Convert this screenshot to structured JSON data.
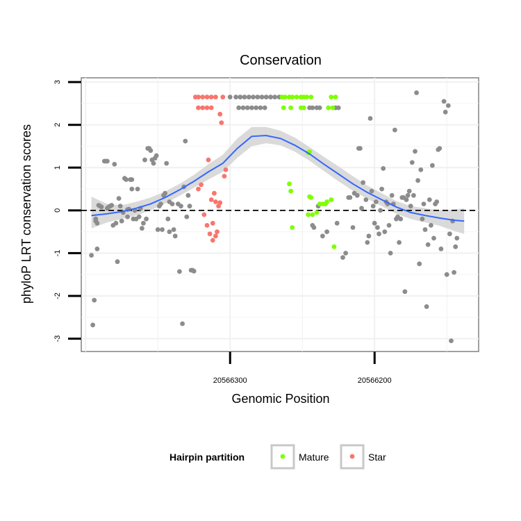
{
  "chart_data": {
    "type": "scatter",
    "title": "Conservation",
    "xlabel": "Genomic Position",
    "ylabel": "phyloP LRT conservation scores",
    "x_reversed": true,
    "xlim": [
      20566403,
      20566128
    ],
    "ylim": [
      -3.3,
      3.1
    ],
    "x_ticks": [
      20566300,
      20566200
    ],
    "x_tick_labels": [
      "20566300",
      "20566200"
    ],
    "y_ticks": [
      -3,
      -2,
      -1,
      0,
      1,
      2,
      3
    ],
    "y_tick_labels": [
      "-3",
      "-2",
      "-1",
      "0",
      "1",
      "2",
      "3"
    ],
    "grid": true,
    "reference_line": {
      "y": 0,
      "style": "dashed",
      "color": "#000000"
    },
    "legend": {
      "title": "Hairpin partition",
      "placement": "bottom",
      "entries": [
        {
          "label": "Mature",
          "color": "#7fff00"
        },
        {
          "label": "Star",
          "color": "#f8766d"
        }
      ]
    },
    "colors": {
      "other": "#8c8c8c",
      "mature": "#7fff00",
      "star": "#f8766d",
      "smooth_line": "#3366ff",
      "ribbon": "#d3d3d3"
    },
    "series": [
      {
        "name": "",
        "group": "other",
        "points": [
          [
            20566396,
            -1.05
          ],
          [
            20566395,
            -2.68
          ],
          [
            20566394,
            -2.1
          ],
          [
            20566393,
            -0.25
          ],
          [
            20566393,
            -0.2
          ],
          [
            20566392,
            -0.9
          ],
          [
            20566392,
            -0.3
          ],
          [
            20566391,
            0.12
          ],
          [
            20566390,
            0.1
          ],
          [
            20566389,
            0.08
          ],
          [
            20566387,
            1.15
          ],
          [
            20566386,
            1.15
          ],
          [
            20566385,
            1.15
          ],
          [
            20566385,
            0.05
          ],
          [
            20566384,
            0.08
          ],
          [
            20566383,
            0.1
          ],
          [
            20566382,
            0.12
          ],
          [
            20566381,
            -0.35
          ],
          [
            20566380,
            1.08
          ],
          [
            20566379,
            -0.3
          ],
          [
            20566378,
            -1.2
          ],
          [
            20566377,
            0.28
          ],
          [
            20566376,
            0.1
          ],
          [
            20566375,
            -0.25
          ],
          [
            20566374,
            -0.05
          ],
          [
            20566373,
            0.75
          ],
          [
            20566372,
            0.72
          ],
          [
            20566371,
            0.02
          ],
          [
            20566371,
            -0.15
          ],
          [
            20566370,
            0.03
          ],
          [
            20566369,
            0.72
          ],
          [
            20566368,
            0.5
          ],
          [
            20566368,
            0.72
          ],
          [
            20566367,
            -0.2
          ],
          [
            20566366,
            0.0
          ],
          [
            20566365,
            -0.2
          ],
          [
            20566364,
            0.5
          ],
          [
            20566363,
            -0.15
          ],
          [
            20566362,
            0.05
          ],
          [
            20566361,
            -0.42
          ],
          [
            20566360,
            -0.3
          ],
          [
            20566359,
            1.18
          ],
          [
            20566358,
            -0.2
          ],
          [
            20566357,
            1.45
          ],
          [
            20566356,
            1.45
          ],
          [
            20566355,
            1.4
          ],
          [
            20566354,
            1.18
          ],
          [
            20566353,
            1.1
          ],
          [
            20566352,
            1.22
          ],
          [
            20566351,
            1.28
          ],
          [
            20566350,
            -0.45
          ],
          [
            20566349,
            0.1
          ],
          [
            20566348,
            0.15
          ],
          [
            20566347,
            -0.45
          ],
          [
            20566346,
            0.35
          ],
          [
            20566345,
            0.4
          ],
          [
            20566344,
            1.1
          ],
          [
            20566343,
            -0.2
          ],
          [
            20566342,
            -0.5
          ],
          [
            20566342,
            0.2
          ],
          [
            20566340,
            0.15
          ],
          [
            20566339,
            -0.45
          ],
          [
            20566338,
            -0.6
          ],
          [
            20566336,
            0.15
          ],
          [
            20566335,
            -1.43
          ],
          [
            20566334,
            0.1
          ],
          [
            20566333,
            -2.65
          ],
          [
            20566332,
            0.55
          ],
          [
            20566331,
            1.62
          ],
          [
            20566330,
            -0.15
          ],
          [
            20566329,
            0.35
          ],
          [
            20566328,
            0.1
          ],
          [
            20566327,
            -1.4
          ],
          [
            20566326,
            -1.4
          ],
          [
            20566325,
            -1.42
          ],
          [
            20566300,
            2.65
          ],
          [
            20566296,
            2.65
          ],
          [
            20566293,
            2.65
          ],
          [
            20566290,
            2.65
          ],
          [
            20566287,
            2.65
          ],
          [
            20566284,
            2.65
          ],
          [
            20566294,
            2.4
          ],
          [
            20566291,
            2.4
          ],
          [
            20566288,
            2.4
          ],
          [
            20566285,
            2.4
          ],
          [
            20566282,
            2.4
          ],
          [
            20566279,
            2.4
          ],
          [
            20566276,
            2.4
          ],
          [
            20566281,
            2.65
          ],
          [
            20566278,
            2.65
          ],
          [
            20566275,
            2.65
          ],
          [
            20566272,
            2.65
          ],
          [
            20566269,
            2.65
          ],
          [
            20566266,
            2.65
          ],
          [
            20566245,
            2.4
          ],
          [
            20566243,
            2.4
          ],
          [
            20566240,
            2.4
          ],
          [
            20566238,
            2.4
          ],
          [
            20566227,
            2.4
          ],
          [
            20566225,
            2.4
          ],
          [
            20566243,
            -0.35
          ],
          [
            20566242,
            -0.4
          ],
          [
            20566239,
            0.1
          ],
          [
            20566236,
            -0.6
          ],
          [
            20566233,
            -0.5
          ],
          [
            20566226,
            -0.3
          ],
          [
            20566222,
            -1.1
          ],
          [
            20566220,
            -1.0
          ],
          [
            20566218,
            0.3
          ],
          [
            20566217,
            0.3
          ],
          [
            20566215,
            -0.4
          ],
          [
            20566214,
            0.4
          ],
          [
            20566212,
            0.35
          ],
          [
            20566211,
            1.45
          ],
          [
            20566210,
            1.45
          ],
          [
            20566209,
            0.05
          ],
          [
            20566208,
            0.65
          ],
          [
            20566206,
            0.25
          ],
          [
            20566205,
            -0.75
          ],
          [
            20566204,
            -0.6
          ],
          [
            20566203,
            2.15
          ],
          [
            20566202,
            0.45
          ],
          [
            20566201,
            0.1
          ],
          [
            20566200,
            -0.3
          ],
          [
            20566199,
            0.2
          ],
          [
            20566198,
            -0.4
          ],
          [
            20566197,
            -0.55
          ],
          [
            20566196,
            0.0
          ],
          [
            20566195,
            0.5
          ],
          [
            20566194,
            0.98
          ],
          [
            20566193,
            -0.5
          ],
          [
            20566192,
            0.2
          ],
          [
            20566191,
            0.15
          ],
          [
            20566190,
            -0.35
          ],
          [
            20566189,
            -1.0
          ],
          [
            20566188,
            0.35
          ],
          [
            20566187,
            0.15
          ],
          [
            20566186,
            1.88
          ],
          [
            20566185,
            -0.2
          ],
          [
            20566184,
            -0.15
          ],
          [
            20566183,
            -0.75
          ],
          [
            20566182,
            -0.2
          ],
          [
            20566181,
            0.3
          ],
          [
            20566180,
            0.3
          ],
          [
            20566179,
            -1.9
          ],
          [
            20566178,
            0.25
          ],
          [
            20566177,
            0.35
          ],
          [
            20566176,
            0.45
          ],
          [
            20566175,
            0.1
          ],
          [
            20566174,
            1.12
          ],
          [
            20566173,
            0.35
          ],
          [
            20566172,
            1.38
          ],
          [
            20566171,
            2.75
          ],
          [
            20566170,
            0.7
          ],
          [
            20566169,
            -1.25
          ],
          [
            20566168,
            0.95
          ],
          [
            20566167,
            -0.2
          ],
          [
            20566166,
            0.15
          ],
          [
            20566165,
            -0.45
          ],
          [
            20566164,
            -2.25
          ],
          [
            20566163,
            -0.8
          ],
          [
            20566162,
            0.25
          ],
          [
            20566161,
            -0.35
          ],
          [
            20566160,
            1.05
          ],
          [
            20566159,
            -0.65
          ],
          [
            20566158,
            0.15
          ],
          [
            20566157,
            0.2
          ],
          [
            20566156,
            1.42
          ],
          [
            20566155,
            1.45
          ],
          [
            20566154,
            -0.9
          ],
          [
            20566152,
            2.55
          ],
          [
            20566151,
            2.3
          ],
          [
            20566150,
            -1.5
          ],
          [
            20566149,
            2.45
          ],
          [
            20566148,
            -0.55
          ],
          [
            20566147,
            -3.05
          ],
          [
            20566146,
            -0.25
          ],
          [
            20566145,
            -1.45
          ],
          [
            20566144,
            -0.85
          ],
          [
            20566143,
            -0.65
          ]
        ]
      },
      {
        "name": "Star",
        "group": "star",
        "points": [
          [
            20566324,
            2.65
          ],
          [
            20566322,
            2.65
          ],
          [
            20566319,
            2.65
          ],
          [
            20566316,
            2.65
          ],
          [
            20566313,
            2.65
          ],
          [
            20566310,
            2.65
          ],
          [
            20566322,
            2.4
          ],
          [
            20566319,
            2.4
          ],
          [
            20566316,
            2.4
          ],
          [
            20566313,
            2.4
          ],
          [
            20566305,
            2.65
          ],
          [
            20566307,
            2.25
          ],
          [
            20566306,
            2.05
          ],
          [
            20566304,
            0.8
          ],
          [
            20566303,
            0.95
          ],
          [
            20566308,
            0.1
          ],
          [
            20566310,
            0.2
          ],
          [
            20566307,
            0.18
          ],
          [
            20566316,
            -0.35
          ],
          [
            20566314,
            -0.55
          ],
          [
            20566312,
            -0.7
          ],
          [
            20566310,
            -0.6
          ],
          [
            20566311,
            0.4
          ],
          [
            20566313,
            0.25
          ],
          [
            20566320,
            0.6
          ],
          [
            20566322,
            0.5
          ],
          [
            20566318,
            -0.1
          ],
          [
            20566315,
            1.18
          ],
          [
            20566312,
            -0.3
          ],
          [
            20566309,
            -0.5
          ]
        ]
      },
      {
        "name": "Mature",
        "group": "mature",
        "points": [
          [
            20566264,
            2.65
          ],
          [
            20566262,
            2.65
          ],
          [
            20566259,
            2.65
          ],
          [
            20566257,
            2.65
          ],
          [
            20566254,
            2.65
          ],
          [
            20566251,
            2.65
          ],
          [
            20566249,
            2.65
          ],
          [
            20566247,
            2.65
          ],
          [
            20566244,
            2.65
          ],
          [
            20566230,
            2.65
          ],
          [
            20566227,
            2.65
          ],
          [
            20566232,
            2.4
          ],
          [
            20566229,
            2.4
          ],
          [
            20566258,
            2.4
          ],
          [
            20566251,
            2.4
          ],
          [
            20566249,
            2.4
          ],
          [
            20566263,
            2.4
          ],
          [
            20566246,
            1.35
          ],
          [
            20566245,
            1.37
          ],
          [
            20566238,
            0.15
          ],
          [
            20566236,
            0.15
          ],
          [
            20566234,
            0.15
          ],
          [
            20566258,
            0.45
          ],
          [
            20566257,
            -0.4
          ],
          [
            20566243,
            -0.1
          ],
          [
            20566246,
            -0.1
          ],
          [
            20566240,
            -0.05
          ],
          [
            20566233,
            0.2
          ],
          [
            20566230,
            0.25
          ],
          [
            20566228,
            -0.85
          ],
          [
            20566259,
            0.62
          ],
          [
            20566244,
            0.3
          ],
          [
            20566245,
            0.32
          ]
        ]
      }
    ],
    "smooth_curve": {
      "method": "loess",
      "x": [
        20566396,
        20566385,
        20566375,
        20566365,
        20566355,
        20566345,
        20566335,
        20566325,
        20566315,
        20566305,
        20566295,
        20566285,
        20566275,
        20566265,
        20566255,
        20566245,
        20566235,
        20566225,
        20566215,
        20566205,
        20566195,
        20566185,
        20566175,
        20566165,
        20566155,
        20566145,
        20566138
      ],
      "y": [
        -0.12,
        -0.08,
        -0.03,
        0.05,
        0.15,
        0.3,
        0.48,
        0.68,
        0.9,
        1.1,
        1.45,
        1.73,
        1.75,
        1.68,
        1.52,
        1.32,
        1.08,
        0.85,
        0.62,
        0.42,
        0.25,
        0.08,
        -0.05,
        -0.12,
        -0.18,
        -0.23,
        -0.25
      ],
      "ymin": [
        -0.42,
        -0.28,
        -0.2,
        -0.12,
        0.0,
        0.16,
        0.34,
        0.53,
        0.72,
        0.9,
        1.23,
        1.5,
        1.57,
        1.52,
        1.37,
        1.16,
        0.92,
        0.68,
        0.46,
        0.27,
        0.1,
        -0.08,
        -0.2,
        -0.28,
        -0.36,
        -0.48,
        -0.55
      ],
      "ymax": [
        0.32,
        0.15,
        0.12,
        0.2,
        0.3,
        0.44,
        0.62,
        0.83,
        1.08,
        1.3,
        1.68,
        1.95,
        1.95,
        1.86,
        1.7,
        1.48,
        1.25,
        1.03,
        0.8,
        0.58,
        0.4,
        0.22,
        0.1,
        0.05,
        0.0,
        0.02,
        0.05
      ]
    }
  }
}
